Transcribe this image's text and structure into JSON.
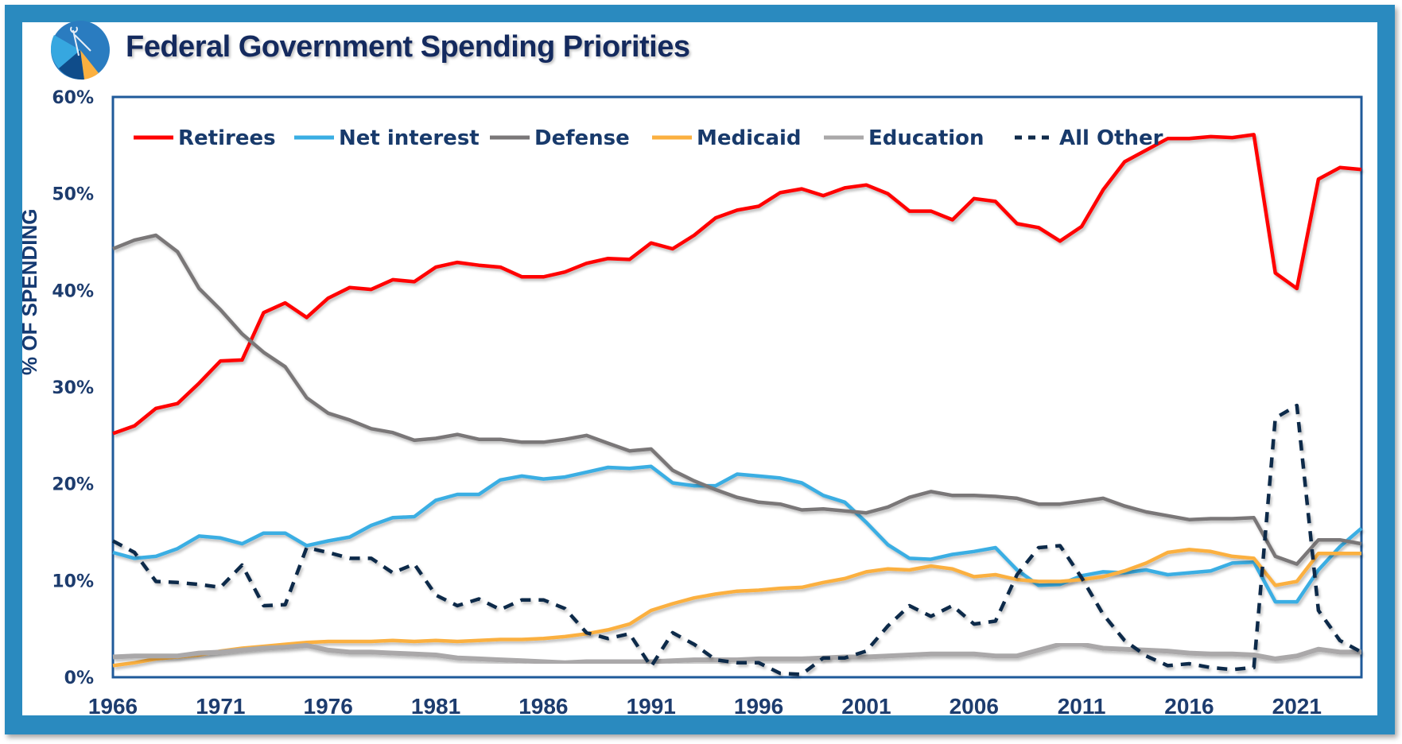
{
  "header": {
    "title": "Federal Government Spending Priorities",
    "logo_icon": "compass-pie-logo-icon"
  },
  "chart_data": {
    "type": "line",
    "title": "Federal Government Spending Priorities",
    "xlabel": "",
    "ylabel": "% OF SPENDING",
    "ylim": [
      0,
      60
    ],
    "xlim": [
      1966,
      2024
    ],
    "grid": false,
    "legend_position": "top-left",
    "y_ticks": [
      "0%",
      "10%",
      "20%",
      "30%",
      "40%",
      "50%",
      "60%"
    ],
    "y_tick_values": [
      0,
      10,
      20,
      30,
      40,
      50,
      60
    ],
    "x_ticks": [
      "1966",
      "1971",
      "1976",
      "1981",
      "1986",
      "1991",
      "1996",
      "2001",
      "2006",
      "2011",
      "2016",
      "2021"
    ],
    "x": [
      1966,
      1967,
      1968,
      1969,
      1970,
      1971,
      1972,
      1973,
      1974,
      1975,
      1976,
      1977,
      1978,
      1979,
      1980,
      1981,
      1982,
      1983,
      1984,
      1985,
      1986,
      1987,
      1988,
      1989,
      1990,
      1991,
      1992,
      1993,
      1994,
      1995,
      1996,
      1997,
      1998,
      1999,
      2000,
      2001,
      2002,
      2003,
      2004,
      2005,
      2006,
      2007,
      2008,
      2009,
      2010,
      2011,
      2012,
      2013,
      2014,
      2015,
      2016,
      2017,
      2018,
      2019,
      2020,
      2021,
      2022,
      2023,
      2024
    ],
    "series": [
      {
        "name": "Retirees",
        "color": "#ff0000",
        "style": "solid",
        "values": [
          25.2,
          26.0,
          27.8,
          28.3,
          30.4,
          32.7,
          32.8,
          37.7,
          38.7,
          37.2,
          39.2,
          40.3,
          40.1,
          41.1,
          40.9,
          42.4,
          42.9,
          42.6,
          42.4,
          41.4,
          41.4,
          41.9,
          42.8,
          43.3,
          43.2,
          44.9,
          44.3,
          45.7,
          47.5,
          48.3,
          48.7,
          50.1,
          50.5,
          49.8,
          50.6,
          50.9,
          50.0,
          48.2,
          48.2,
          47.3,
          49.5,
          49.2,
          46.9,
          46.5,
          45.1,
          46.6,
          50.4,
          53.3,
          54.5,
          55.7,
          55.7,
          55.9,
          55.8,
          56.1,
          41.8,
          40.2,
          51.5,
          52.7,
          52.5
        ]
      },
      {
        "name": "Net interest",
        "color": "#3aaee3",
        "style": "solid",
        "values": [
          12.9,
          12.3,
          12.5,
          13.3,
          14.6,
          14.4,
          13.8,
          14.9,
          14.9,
          13.6,
          14.1,
          14.5,
          15.7,
          16.5,
          16.6,
          18.3,
          18.9,
          18.9,
          20.4,
          20.8,
          20.5,
          20.7,
          21.2,
          21.7,
          21.6,
          21.8,
          20.1,
          19.8,
          19.8,
          21.0,
          20.8,
          20.6,
          20.1,
          18.8,
          18.1,
          16.0,
          13.7,
          12.3,
          12.2,
          12.7,
          13.0,
          13.4,
          11.1,
          9.5,
          9.6,
          10.5,
          10.9,
          10.8,
          11.1,
          10.6,
          10.8,
          11.0,
          11.8,
          11.9,
          7.8,
          7.8,
          11.1,
          13.5,
          15.4
        ]
      },
      {
        "name": "Defense",
        "color": "#7a7778",
        "style": "solid",
        "values": [
          44.3,
          45.2,
          45.7,
          44.0,
          40.2,
          38.0,
          35.5,
          33.6,
          32.1,
          28.9,
          27.3,
          26.6,
          25.7,
          25.3,
          24.5,
          24.7,
          25.1,
          24.6,
          24.6,
          24.3,
          24.3,
          24.6,
          25.0,
          24.2,
          23.4,
          23.6,
          21.4,
          20.3,
          19.4,
          18.6,
          18.1,
          17.9,
          17.3,
          17.4,
          17.2,
          17.0,
          17.6,
          18.6,
          19.2,
          18.8,
          18.8,
          18.7,
          18.5,
          17.9,
          17.9,
          18.2,
          18.5,
          17.7,
          17.1,
          16.7,
          16.3,
          16.4,
          16.4,
          16.5,
          12.5,
          11.7,
          14.2,
          14.2,
          13.8
        ]
      },
      {
        "name": "Medicaid",
        "color": "#fbb040",
        "style": "solid",
        "values": [
          1.2,
          1.5,
          1.9,
          2.1,
          2.3,
          2.7,
          3.0,
          3.2,
          3.4,
          3.6,
          3.7,
          3.7,
          3.7,
          3.8,
          3.7,
          3.8,
          3.7,
          3.8,
          3.9,
          3.9,
          4.0,
          4.2,
          4.5,
          4.9,
          5.5,
          6.9,
          7.6,
          8.2,
          8.6,
          8.9,
          9.0,
          9.2,
          9.3,
          9.8,
          10.2,
          10.9,
          11.2,
          11.1,
          11.5,
          11.2,
          10.4,
          10.6,
          10.1,
          9.9,
          9.9,
          10.1,
          10.4,
          11.0,
          11.8,
          12.9,
          13.2,
          13.0,
          12.5,
          12.3,
          9.5,
          9.9,
          12.8,
          12.8,
          12.8
        ]
      },
      {
        "name": "Education",
        "color": "#aaa8a9",
        "style": "solid",
        "values": [
          2.1,
          2.2,
          2.2,
          2.2,
          2.5,
          2.6,
          2.8,
          3.0,
          3.1,
          3.3,
          2.8,
          2.6,
          2.6,
          2.5,
          2.4,
          2.3,
          2.0,
          1.9,
          1.8,
          1.7,
          1.6,
          1.5,
          1.6,
          1.6,
          1.6,
          1.6,
          1.7,
          1.8,
          1.8,
          1.8,
          1.9,
          1.9,
          1.9,
          2.0,
          2.1,
          2.1,
          2.2,
          2.3,
          2.4,
          2.4,
          2.4,
          2.2,
          2.2,
          2.8,
          3.4,
          3.4,
          3.0,
          2.9,
          2.8,
          2.7,
          2.5,
          2.4,
          2.4,
          2.3,
          1.9,
          2.2,
          2.9,
          2.6,
          2.6
        ]
      },
      {
        "name": "All Other",
        "color": "#0f2a4a",
        "style": "dashed",
        "values": [
          14.1,
          12.9,
          9.9,
          9.8,
          9.6,
          9.3,
          11.6,
          7.4,
          7.5,
          13.4,
          12.9,
          12.3,
          12.3,
          10.8,
          11.7,
          8.5,
          7.4,
          8.1,
          7.0,
          8.0,
          8.0,
          7.1,
          4.6,
          4.0,
          4.5,
          1.1,
          4.6,
          3.4,
          1.8,
          1.5,
          1.5,
          0.4,
          0.3,
          2.0,
          2.0,
          2.7,
          5.3,
          7.4,
          6.3,
          7.4,
          5.5,
          5.8,
          10.6,
          13.4,
          13.6,
          10.3,
          6.5,
          3.8,
          2.2,
          1.2,
          1.4,
          1.0,
          0.8,
          1.0,
          26.8,
          28.1,
          6.9,
          3.8,
          2.6
        ]
      }
    ]
  }
}
